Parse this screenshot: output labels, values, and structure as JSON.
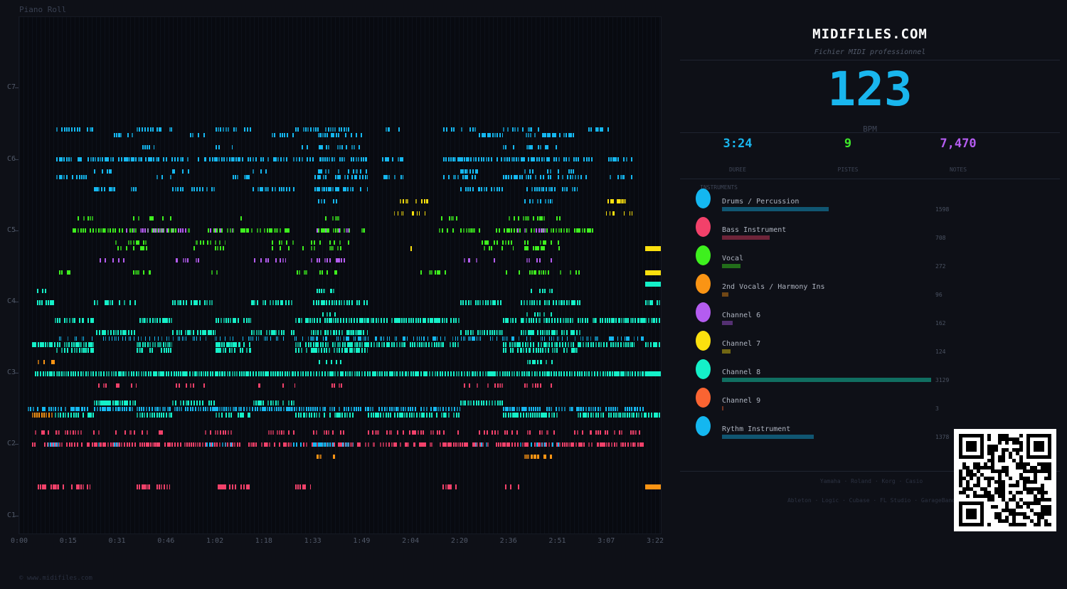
{
  "piano_roll": {
    "title": "Piano Roll",
    "y_labels": [
      "C7",
      "C6",
      "C5",
      "C4",
      "C3",
      "C2",
      "C1"
    ],
    "x_labels": [
      "0:00",
      "0:15",
      "0:31",
      "0:46",
      "1:02",
      "1:18",
      "1:33",
      "1:49",
      "2:04",
      "2:20",
      "2:36",
      "2:51",
      "3:07",
      "3:22"
    ],
    "copyright": "© www.midifiles.com"
  },
  "header": {
    "brand": "MIDIFILES.COM",
    "subtitle": "Fichier MIDI professionnel"
  },
  "tempo": {
    "bpm_value": "123",
    "bpm_label": "BPM"
  },
  "stats": {
    "duration": {
      "value": "3:24",
      "label": "DUREE",
      "color": "#19b6ee"
    },
    "tracks": {
      "value": "9",
      "label": "PISTES",
      "color": "#3ee82a"
    },
    "notes": {
      "value": "7,470",
      "label": "NOTES",
      "color": "#b45cf0"
    }
  },
  "instruments": {
    "heading": "INSTRUMENTS",
    "items": [
      {
        "name": "Drums / Percussion",
        "count": "1598",
        "color": "#14b7f0"
      },
      {
        "name": "Bass Instrument",
        "count": "708",
        "color": "#f2416a"
      },
      {
        "name": "Vocal",
        "count": "272",
        "color": "#3ef01e"
      },
      {
        "name": "2nd Vocals / Harmony Ins",
        "count": "96",
        "color": "#fa9414"
      },
      {
        "name": "Channel 6",
        "count": "162",
        "color": "#b45cf0"
      },
      {
        "name": "Channel 7",
        "count": "124",
        "color": "#fbe00e"
      },
      {
        "name": "Channel 8",
        "count": "3129",
        "color": "#14f0c8"
      },
      {
        "name": "Channel 9",
        "count": "3",
        "color": "#fa6432"
      },
      {
        "name": "Rythm Instrument",
        "count": "1378",
        "color": "#14b7f0"
      }
    ]
  },
  "brands": {
    "hardware": "Yamaha · Roland · Korg · Casio",
    "software": "Ableton · Logic · Cubase · FL Studio · GarageBand"
  }
}
